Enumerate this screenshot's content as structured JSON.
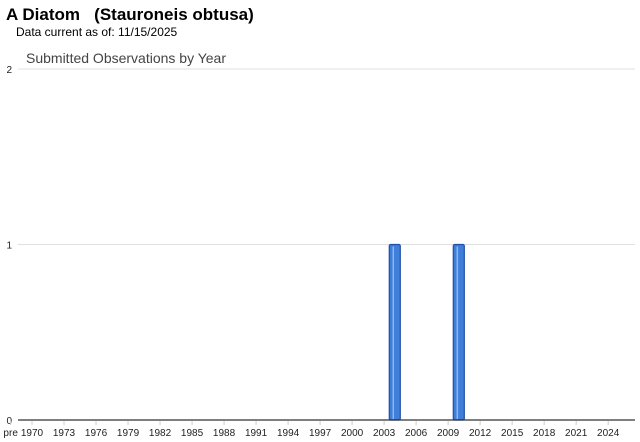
{
  "header": {
    "title": "A Diatom   (Stauroneis obtusa)",
    "data_current": "Data current as of: 11/15/2025"
  },
  "chart_data": {
    "type": "bar",
    "title": "Submitted Observations by Year",
    "xlabel": "",
    "ylabel": "",
    "ylim": [
      0,
      2
    ],
    "yticks": [
      "0",
      "1",
      "2"
    ],
    "xticks": [
      "pre",
      "1970",
      "1973",
      "1976",
      "1979",
      "1982",
      "1985",
      "1988",
      "1991",
      "1994",
      "1997",
      "2000",
      "2003",
      "2006",
      "2009",
      "2012",
      "2015",
      "2018",
      "2021",
      "2024"
    ],
    "x": [
      2004,
      2010
    ],
    "values": [
      1,
      1
    ],
    "grid": true,
    "bar_color": "#3f7fd9",
    "bar_border": "#1f4fa8"
  }
}
